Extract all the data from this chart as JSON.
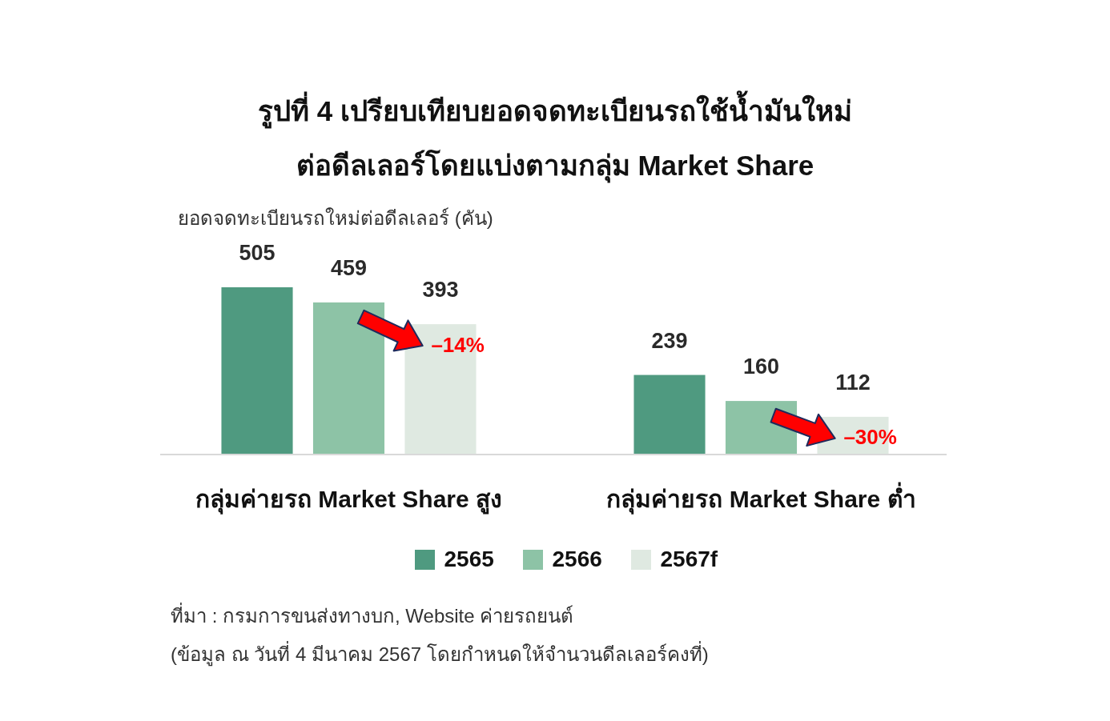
{
  "chart_data": {
    "type": "bar",
    "title": "รูปที่ 4 เปรียบเทียบยอดจดทะเบียนรถใช้น้ำมันใหม่\nต่อดีลเลอร์โดยแบ่งตามกลุ่ม Market Share",
    "ylabel": "ยอดจดทะเบียนรถใหม่ต่อดีลเลอร์ (คัน)",
    "categories": [
      "กลุ่มค่ายรถ Market Share สูง",
      "กลุ่มค่ายรถ Market Share ต่ำ"
    ],
    "series": [
      {
        "name": "2565",
        "color": "#4f9a80",
        "values": [
          505,
          239
        ]
      },
      {
        "name": "2566",
        "color": "#8dc3a6",
        "values": [
          459,
          160
        ]
      },
      {
        "name": "2567f",
        "color": "#dfe9e1",
        "values": [
          393,
          112
        ]
      }
    ],
    "data_labels": true,
    "legend": "bottom",
    "annotations": [
      "–14%",
      "–30%",
      "ที่มา : กรมการขนส่งทางบก, Website ค่ายรถยนต์",
      "(ข้อมูล ณ วันที่ 4 มีนาคม 2567 โดยกำหนดให้จำนวนดีลเลอร์คงที่)"
    ]
  }
}
